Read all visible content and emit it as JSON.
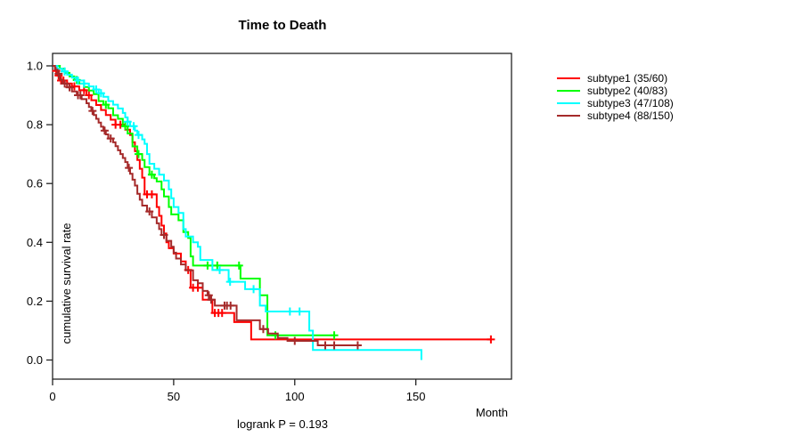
{
  "chart_data": {
    "type": "line",
    "subtype": "kaplan-meier-step",
    "title": "Time to Death",
    "xlabel": "Month",
    "ylabel": "cumulative survival rate",
    "annotation": "logrank P = 0.193",
    "p_value": 0.193,
    "xlim": [
      0,
      189.5
    ],
    "ylim": [
      0,
      1.0
    ],
    "x_ticks": [
      0,
      50,
      100,
      150
    ],
    "y_ticks": [
      "0.0",
      "0.2",
      "0.4",
      "0.6",
      "0.8",
      "1.0"
    ],
    "grid": false,
    "legend_position": "right-outside",
    "series": [
      {
        "name": "subtype1",
        "label": "subtype1 (35/60)",
        "events": 35,
        "n": 60,
        "color": "#ff0000",
        "steps": [
          [
            0,
            1.0
          ],
          [
            1,
            0.983
          ],
          [
            2,
            0.967
          ],
          [
            3,
            0.95
          ],
          [
            5,
            0.94
          ],
          [
            8,
            0.93
          ],
          [
            11,
            0.917
          ],
          [
            14,
            0.9
          ],
          [
            16,
            0.883
          ],
          [
            18,
            0.867
          ],
          [
            20,
            0.85
          ],
          [
            22,
            0.833
          ],
          [
            24,
            0.817
          ],
          [
            26,
            0.8
          ],
          [
            30,
            0.783
          ],
          [
            32,
            0.765
          ],
          [
            33,
            0.74
          ],
          [
            34,
            0.71
          ],
          [
            35,
            0.68
          ],
          [
            36,
            0.65
          ],
          [
            37,
            0.62
          ],
          [
            38,
            0.563
          ],
          [
            43,
            0.52
          ],
          [
            44,
            0.49
          ],
          [
            45,
            0.457
          ],
          [
            46,
            0.43
          ],
          [
            47,
            0.4
          ],
          [
            48,
            0.38
          ],
          [
            50,
            0.362
          ],
          [
            53,
            0.335
          ],
          [
            55,
            0.306
          ],
          [
            57,
            0.246
          ],
          [
            62,
            0.205
          ],
          [
            66,
            0.16
          ],
          [
            75,
            0.129
          ],
          [
            82,
            0.07
          ],
          [
            181,
            0.07
          ]
        ],
        "censor_months": [
          1.5,
          2.5,
          3.5,
          4.5,
          6,
          9,
          13,
          15,
          26,
          28,
          39,
          41,
          56,
          58,
          60,
          67,
          68.5,
          70,
          181
        ]
      },
      {
        "name": "subtype2",
        "label": "subtype2 (40/83)",
        "events": 40,
        "n": 83,
        "color": "#00ff00",
        "steps": [
          [
            0,
            1.0
          ],
          [
            3,
            0.99
          ],
          [
            5,
            0.976
          ],
          [
            7,
            0.964
          ],
          [
            9,
            0.952
          ],
          [
            11,
            0.94
          ],
          [
            13,
            0.928
          ],
          [
            15,
            0.916
          ],
          [
            17,
            0.904
          ],
          [
            19,
            0.88
          ],
          [
            21,
            0.868
          ],
          [
            23,
            0.856
          ],
          [
            25,
            0.832
          ],
          [
            27,
            0.82
          ],
          [
            29,
            0.795
          ],
          [
            31,
            0.77
          ],
          [
            33,
            0.726
          ],
          [
            35,
            0.7
          ],
          [
            37,
            0.68
          ],
          [
            38,
            0.656
          ],
          [
            40,
            0.63
          ],
          [
            42,
            0.618
          ],
          [
            43,
            0.607
          ],
          [
            45,
            0.58
          ],
          [
            46,
            0.556
          ],
          [
            48,
            0.52
          ],
          [
            49,
            0.495
          ],
          [
            52,
            0.475
          ],
          [
            54,
            0.435
          ],
          [
            56,
            0.415
          ],
          [
            57,
            0.352
          ],
          [
            58,
            0.321
          ],
          [
            77.6,
            0.277
          ],
          [
            85.6,
            0.22
          ],
          [
            88.7,
            0.084
          ],
          [
            116.3,
            0.084
          ]
        ],
        "censor_months": [
          10,
          22,
          30,
          35.5,
          41,
          64,
          68,
          77,
          92,
          116.3
        ]
      },
      {
        "name": "subtype3",
        "label": "subtype3 (47/108)",
        "events": 47,
        "n": 108,
        "color": "#00ffff",
        "steps": [
          [
            0,
            1.0
          ],
          [
            2,
            0.99
          ],
          [
            4,
            0.981
          ],
          [
            6,
            0.97
          ],
          [
            8,
            0.96
          ],
          [
            10,
            0.95
          ],
          [
            13,
            0.94
          ],
          [
            15,
            0.93
          ],
          [
            17,
            0.92
          ],
          [
            19,
            0.907
          ],
          [
            21,
            0.895
          ],
          [
            23,
            0.88
          ],
          [
            25,
            0.868
          ],
          [
            27,
            0.855
          ],
          [
            29,
            0.84
          ],
          [
            30,
            0.825
          ],
          [
            31,
            0.81
          ],
          [
            32,
            0.795
          ],
          [
            34,
            0.78
          ],
          [
            35,
            0.765
          ],
          [
            37,
            0.75
          ],
          [
            38,
            0.735
          ],
          [
            39,
            0.7
          ],
          [
            40,
            0.667
          ],
          [
            42,
            0.65
          ],
          [
            44,
            0.63
          ],
          [
            46,
            0.61
          ],
          [
            48,
            0.58
          ],
          [
            49,
            0.55
          ],
          [
            50,
            0.52
          ],
          [
            52,
            0.5
          ],
          [
            54,
            0.445
          ],
          [
            55,
            0.42
          ],
          [
            58,
            0.4
          ],
          [
            60,
            0.385
          ],
          [
            61,
            0.34
          ],
          [
            66,
            0.306
          ],
          [
            72.7,
            0.266
          ],
          [
            79.5,
            0.241
          ],
          [
            85.6,
            0.185
          ],
          [
            88,
            0.165
          ],
          [
            106,
            0.1
          ],
          [
            107.5,
            0.034
          ],
          [
            152.3,
            0.0
          ]
        ],
        "censor_months": [
          5,
          10.5,
          13,
          18,
          20,
          31,
          33.5,
          35.5,
          69,
          73.3,
          83,
          98,
          102
        ]
      },
      {
        "name": "subtype4",
        "label": "subtype4 (88/150)",
        "events": 88,
        "n": 150,
        "color": "#a52a2a",
        "steps": [
          [
            0,
            1.0
          ],
          [
            1,
            0.987
          ],
          [
            2,
            0.973
          ],
          [
            3,
            0.953
          ],
          [
            4,
            0.94
          ],
          [
            6,
            0.927
          ],
          [
            8,
            0.913
          ],
          [
            10,
            0.9
          ],
          [
            12,
            0.887
          ],
          [
            14,
            0.873
          ],
          [
            15,
            0.86
          ],
          [
            16,
            0.847
          ],
          [
            17,
            0.833
          ],
          [
            18,
            0.82
          ],
          [
            19,
            0.807
          ],
          [
            20,
            0.793
          ],
          [
            21,
            0.78
          ],
          [
            22,
            0.767
          ],
          [
            23,
            0.753
          ],
          [
            25,
            0.74
          ],
          [
            26,
            0.727
          ],
          [
            27,
            0.713
          ],
          [
            28,
            0.7
          ],
          [
            29,
            0.687
          ],
          [
            30,
            0.673
          ],
          [
            31,
            0.653
          ],
          [
            32,
            0.633
          ],
          [
            33,
            0.613
          ],
          [
            34,
            0.593
          ],
          [
            35,
            0.565
          ],
          [
            36,
            0.545
          ],
          [
            37,
            0.525
          ],
          [
            39,
            0.505
          ],
          [
            41,
            0.485
          ],
          [
            43,
            0.465
          ],
          [
            44,
            0.445
          ],
          [
            45,
            0.425
          ],
          [
            47,
            0.405
          ],
          [
            49,
            0.385
          ],
          [
            50,
            0.365
          ],
          [
            51,
            0.345
          ],
          [
            53,
            0.325
          ],
          [
            55,
            0.305
          ],
          [
            58,
            0.271
          ],
          [
            60,
            0.261
          ],
          [
            62,
            0.235
          ],
          [
            64,
            0.22
          ],
          [
            65,
            0.205
          ],
          [
            67,
            0.185
          ],
          [
            76,
            0.135
          ],
          [
            85.6,
            0.105
          ],
          [
            89,
            0.09
          ],
          [
            93,
            0.075
          ],
          [
            97,
            0.065
          ],
          [
            109.5,
            0.05
          ],
          [
            127,
            0.05
          ]
        ],
        "censor_months": [
          2.5,
          5,
          7,
          10.5,
          11.5,
          16.5,
          21.5,
          24,
          31.5,
          40,
          46,
          64.5,
          65.5,
          71,
          72,
          73.5,
          87,
          100,
          112.6,
          116.3,
          126
        ]
      }
    ]
  },
  "axis_color": "#222222",
  "text_color": "#000000"
}
